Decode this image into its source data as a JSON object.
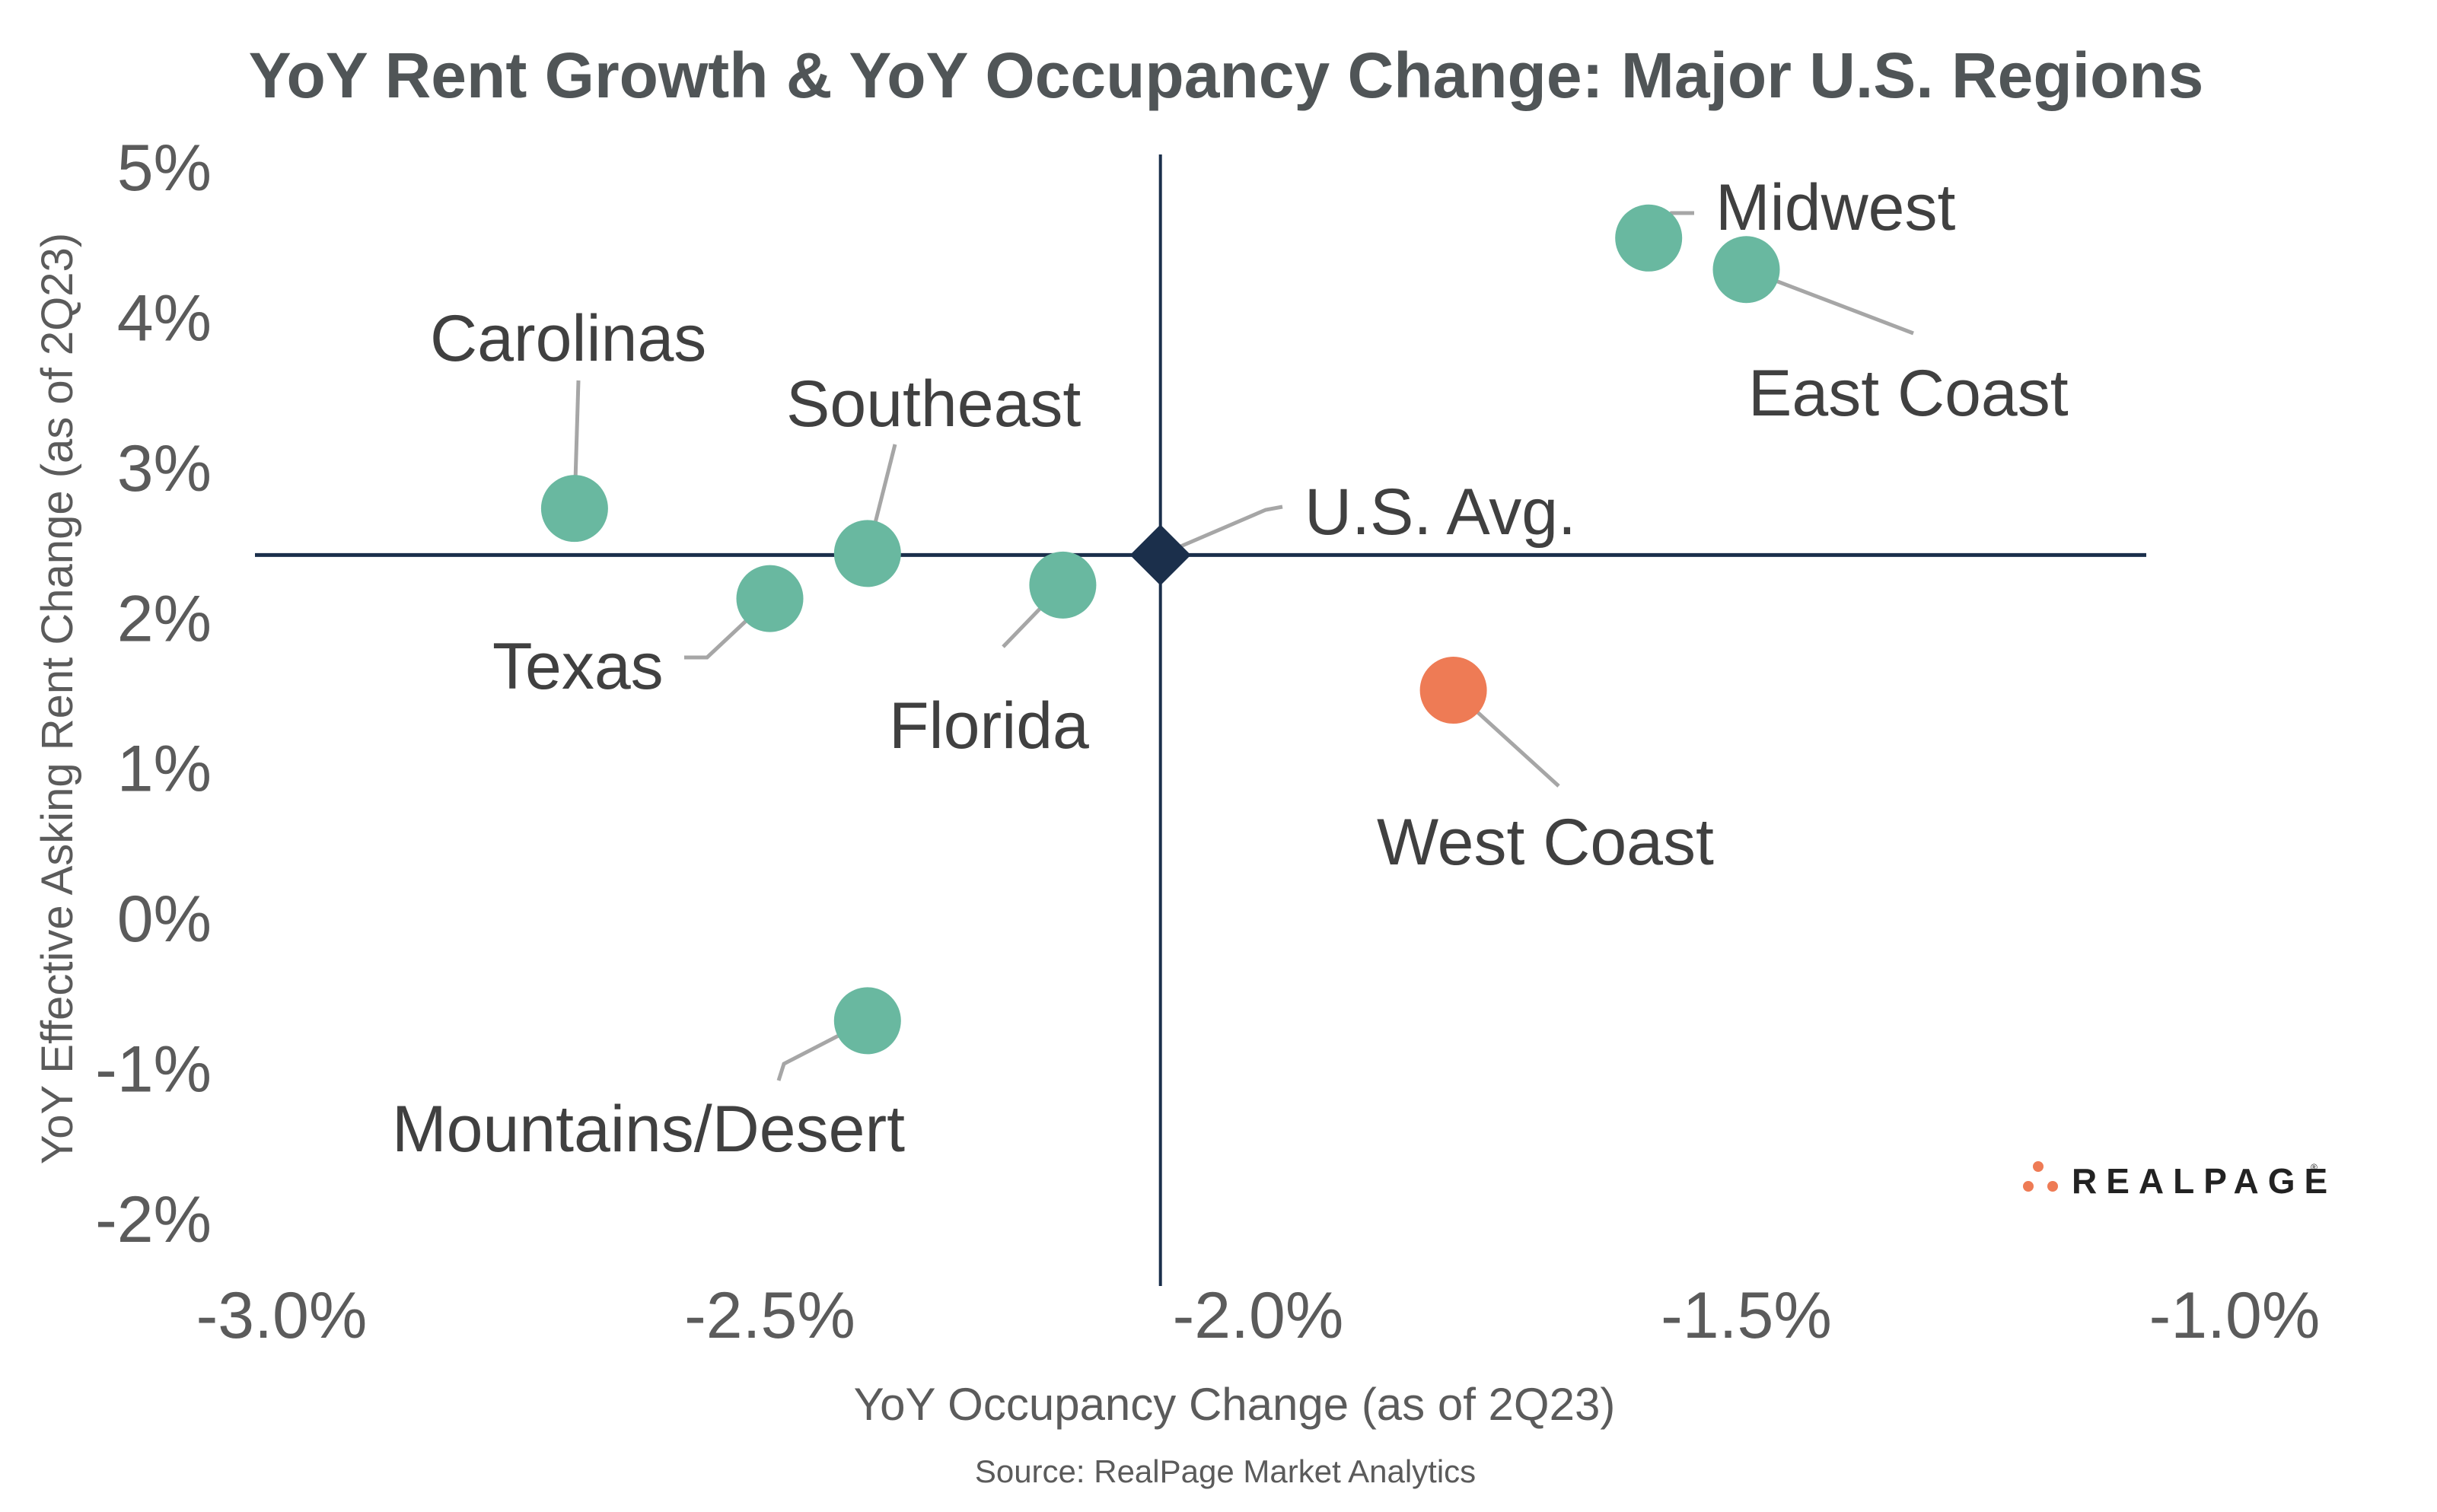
{
  "chart_data": {
    "type": "scatter",
    "title": "YoY Rent Growth & YoY Occupancy Change: Major U.S. Regions",
    "xlabel": "YoY Occupancy Change (as of 2Q23)",
    "ylabel": "YoY Effective Asking Rent Change (as of 2Q23)",
    "source": "Source: RealPage Market Analytics",
    "xlim": [
      -3.0,
      -1.0
    ],
    "ylim": [
      -2,
      5
    ],
    "x_ticks": [
      -3.0,
      -2.5,
      -2.0,
      -1.5,
      -1.0
    ],
    "x_tick_labels": [
      "-3.0%",
      "-2.5%",
      "-2.0%",
      "-1.5%",
      "-1.0%"
    ],
    "y_ticks": [
      5,
      4,
      3,
      2,
      1,
      0,
      -1,
      -2
    ],
    "y_tick_labels": [
      "5%",
      "4%",
      "3%",
      "2%",
      "1%",
      "0%",
      "-1%",
      "-2%"
    ],
    "grid": false,
    "reference_lines": {
      "x": -2.1,
      "y": 2.42
    },
    "colors": {
      "positive": "#69b8a0",
      "negative": "#ee7b55",
      "average": "#1b2f4b",
      "leader": "#a6a6a6"
    },
    "points": [
      {
        "name": "Midwest",
        "x": -1.6,
        "y": 4.53,
        "group": "positive"
      },
      {
        "name": "East Coast",
        "x": -1.5,
        "y": 4.32,
        "group": "positive"
      },
      {
        "name": "Carolinas",
        "x": -2.7,
        "y": 2.73,
        "group": "positive"
      },
      {
        "name": "Southeast",
        "x": -2.4,
        "y": 2.43,
        "group": "positive"
      },
      {
        "name": "Texas",
        "x": -2.5,
        "y": 2.13,
        "group": "positive"
      },
      {
        "name": "Florida",
        "x": -2.2,
        "y": 2.22,
        "group": "positive"
      },
      {
        "name": "U.S. Avg.",
        "x": -2.1,
        "y": 2.42,
        "group": "average"
      },
      {
        "name": "West Coast",
        "x": -1.8,
        "y": 1.52,
        "group": "negative"
      },
      {
        "name": "Mountains/Desert",
        "x": -2.4,
        "y": -0.68,
        "group": "positive"
      }
    ]
  },
  "logo": {
    "text": "REALPAGE",
    "mark": "®"
  }
}
